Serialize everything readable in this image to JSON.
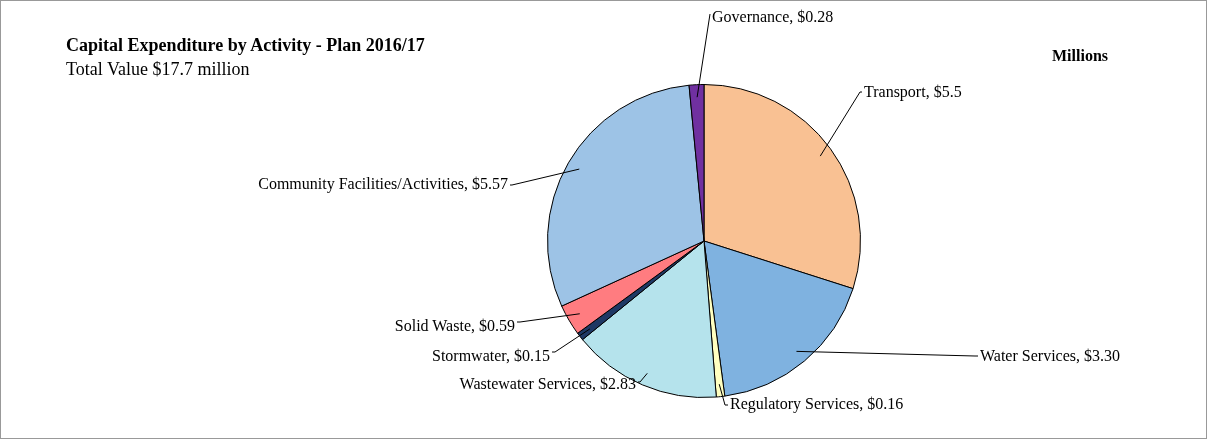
{
  "chart_data": {
    "type": "pie",
    "title": "Capital Expenditure by Activity - Plan 2016/17",
    "subtitle": "Total Value $17.7 million",
    "categories": [
      "Transport",
      "Water Services",
      "Regulatory Services",
      "Wastewater Services",
      "Stormwater",
      "Solid Waste",
      "Community Facilities/Activities",
      "Governance"
    ],
    "values": [
      5.5,
      3.3,
      0.16,
      2.83,
      0.15,
      0.59,
      5.57,
      0.28
    ],
    "value_labels": [
      "$5.5",
      "$3.30",
      "$0.16",
      "$2.83",
      "$0.15",
      "$0.59",
      "$5.57",
      "$0.28"
    ],
    "colors": [
      "#f9c193",
      "#7fb2e0",
      "#ffffc0",
      "#b5e3ec",
      "#1f3864",
      "#ff7c80",
      "#9dc3e6",
      "#7030a0"
    ],
    "annotations": [
      "Millions"
    ],
    "legend": false
  }
}
